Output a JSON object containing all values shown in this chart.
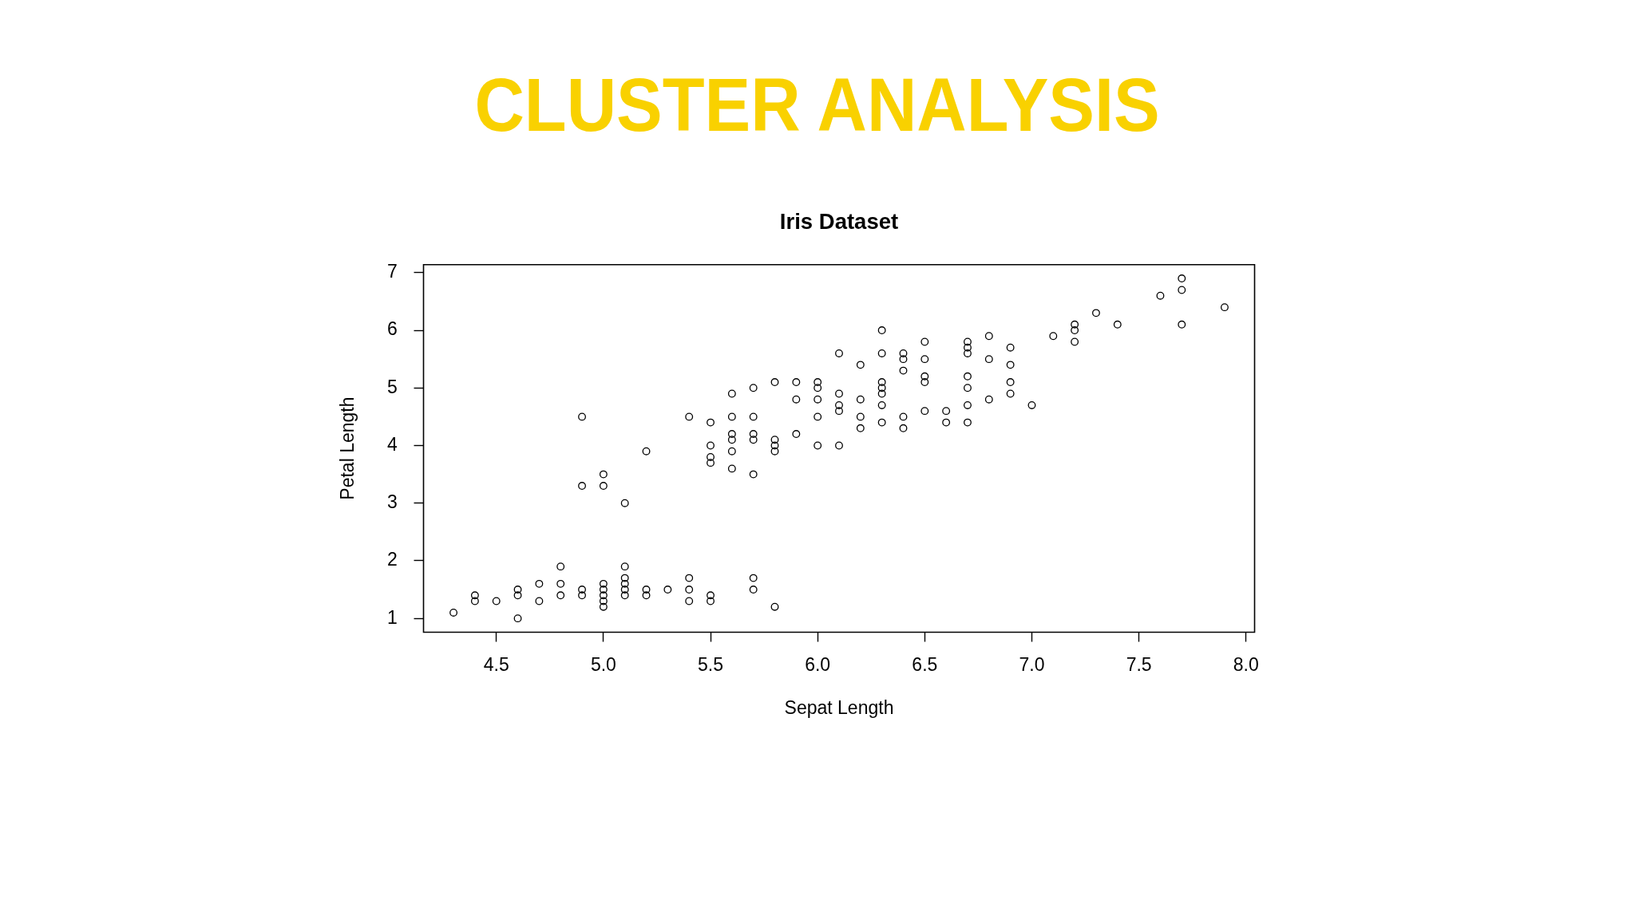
{
  "chart_data": {
    "type": "scatter",
    "title": "CLUSTER ANALYSIS",
    "subtitle": "Iris Dataset",
    "xlabel": "Sepat Length",
    "ylabel": "Petal Length",
    "x": [
      5.1,
      4.9,
      4.7,
      4.6,
      5.0,
      5.4,
      4.6,
      5.0,
      4.4,
      4.9,
      5.4,
      4.8,
      4.8,
      4.3,
      5.8,
      5.7,
      5.4,
      5.7,
      5.1,
      4.6,
      5.1,
      4.8,
      5.0,
      5.2,
      5.2,
      4.7,
      5.5,
      5.0,
      5.5,
      4.4,
      5.0,
      4.5,
      5.1,
      5.1,
      5.3,
      7.0,
      6.4,
      6.9,
      5.5,
      6.5,
      5.7,
      6.3,
      4.9,
      6.6,
      5.2,
      5.0,
      5.9,
      6.0,
      6.1,
      5.6,
      6.7,
      5.6,
      5.8,
      6.2,
      5.6,
      5.9,
      6.1,
      6.3,
      6.4,
      6.6,
      6.8,
      6.7,
      6.0,
      5.7,
      5.5,
      5.5,
      5.8,
      6.0,
      5.4,
      6.7,
      6.3,
      5.6,
      5.5,
      6.1,
      5.8,
      5.0,
      5.6,
      5.7,
      6.2,
      5.1,
      5.7,
      6.3,
      5.8,
      7.1,
      6.3,
      6.5,
      7.6,
      4.9,
      7.3,
      6.7,
      7.2,
      6.5,
      6.4,
      6.8,
      5.7,
      6.5,
      7.7,
      7.7,
      6.0,
      6.9,
      5.6,
      6.7,
      7.2,
      6.2,
      6.1,
      6.4,
      7.2,
      7.4,
      7.9,
      6.3,
      6.1,
      7.7,
      6.4,
      6.0,
      6.9,
      6.7,
      6.9,
      6.8,
      6.7,
      6.3,
      6.5,
      6.2,
      5.9
    ],
    "values": [
      1.4,
      1.4,
      1.3,
      1.5,
      1.4,
      1.7,
      1.4,
      1.5,
      1.4,
      1.5,
      1.5,
      1.6,
      1.4,
      1.1,
      1.2,
      1.5,
      1.3,
      1.7,
      1.5,
      1.0,
      1.7,
      1.9,
      1.6,
      1.5,
      1.4,
      1.6,
      1.4,
      1.2,
      1.3,
      1.3,
      1.3,
      1.3,
      1.9,
      1.6,
      1.5,
      4.7,
      4.5,
      4.9,
      4.0,
      4.6,
      4.5,
      4.7,
      3.3,
      4.6,
      3.9,
      3.5,
      4.2,
      4.0,
      4.7,
      3.6,
      4.4,
      4.5,
      4.1,
      4.5,
      3.9,
      4.8,
      4.0,
      4.9,
      4.3,
      4.4,
      4.8,
      5.0,
      4.5,
      3.5,
      3.8,
      3.7,
      3.9,
      5.1,
      4.5,
      4.7,
      4.4,
      4.1,
      4.4,
      4.6,
      4.0,
      3.3,
      4.2,
      4.2,
      4.3,
      3.0,
      4.1,
      6.0,
      5.1,
      5.9,
      5.6,
      5.8,
      6.6,
      4.5,
      6.3,
      5.8,
      6.1,
      5.1,
      5.3,
      5.5,
      5.0,
      5.5,
      6.7,
      6.9,
      5.0,
      5.7,
      4.9,
      5.7,
      6.0,
      4.8,
      4.9,
      5.6,
      5.8,
      6.1,
      6.4,
      5.1,
      5.6,
      6.1,
      5.5,
      4.8,
      5.4,
      5.6,
      5.1,
      5.9,
      5.2,
      5.0,
      5.2,
      5.4,
      5.1
    ],
    "color": "#000000",
    "marker": "circle",
    "xlim": [
      4.16,
      8.04
    ],
    "ylim": [
      0.76,
      7.14
    ],
    "xticks": [
      4.5,
      {
        "value": 5,
        "label": "5.0"
      },
      5.5,
      {
        "value": 6,
        "label": "6.0"
      },
      6.5,
      {
        "value": 7,
        "label": "7.0"
      },
      7.5,
      {
        "value": 8,
        "label": "8.0"
      }
    ],
    "yticks": [
      1,
      2,
      3,
      4,
      5,
      6,
      7
    ]
  }
}
